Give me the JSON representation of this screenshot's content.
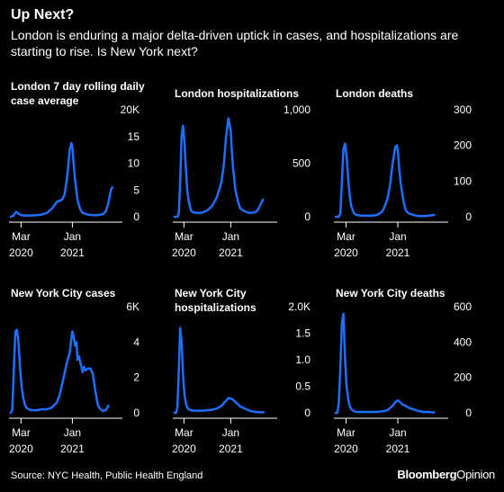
{
  "title": "Up Next?",
  "subtitle": "London is enduring a major delta-driven uptick in cases, and hospitalizations are starting to rise. Is New York next?",
  "source": "Source: NYC Health, Public Health England",
  "brand": {
    "part1": "Bloomberg",
    "part2": "Opinion"
  },
  "line_color": "#1f6fff",
  "chart_data": [
    {
      "type": "line",
      "title": "London 7 day rolling daily case average",
      "title_lines": [
        "London 7 day rolling daily",
        "case average"
      ],
      "yticks": [
        "20K",
        "15",
        "10",
        "5",
        "0"
      ],
      "ylim": [
        0,
        20000
      ],
      "xticks": [
        {
          "x": 2,
          "line1": "Mar",
          "line2": "2020"
        },
        {
          "x": 12,
          "line1": "Jan",
          "line2": "2021"
        }
      ],
      "xlim": [
        0,
        20
      ],
      "x": [
        0,
        0.5,
        1,
        1.5,
        2,
        3,
        4,
        5,
        6,
        7,
        8,
        9,
        9.5,
        10,
        10.5,
        11,
        11.5,
        11.8,
        12,
        12.2,
        12.5,
        13,
        13.5,
        14,
        15,
        16,
        17,
        18,
        18.5,
        19,
        19.3,
        19.6,
        19.8
      ],
      "y": [
        0,
        200,
        900,
        600,
        300,
        200,
        250,
        300,
        400,
        700,
        1500,
        2800,
        3000,
        3200,
        4200,
        7500,
        12500,
        13800,
        13000,
        10500,
        7000,
        3200,
        1500,
        700,
        400,
        300,
        300,
        500,
        1000,
        2500,
        4000,
        5200,
        5500
      ]
    },
    {
      "type": "line",
      "title": "London hospitalizations",
      "title_lines": [
        "London hospitalizations"
      ],
      "yticks": [
        "1,000",
        "500",
        "0"
      ],
      "ylim": [
        0,
        1000
      ],
      "xticks": [
        {
          "x": 2,
          "line1": "Mar",
          "line2": "2020"
        },
        {
          "x": 12,
          "line1": "Jan",
          "line2": "2021"
        }
      ],
      "xlim": [
        0,
        20
      ],
      "x": [
        0,
        0.3,
        0.6,
        0.9,
        1.2,
        1.5,
        1.8,
        2.1,
        2.4,
        2.7,
        3,
        3.5,
        4,
        5,
        6,
        7,
        8,
        9,
        9.5,
        10,
        10.5,
        11,
        11.5,
        11.8,
        12,
        12.2,
        12.5,
        13,
        13.5,
        14,
        15,
        16,
        17,
        17.5,
        18,
        18.5,
        18.9
      ],
      "y": [
        0,
        0,
        0,
        30,
        330,
        760,
        850,
        700,
        450,
        250,
        150,
        60,
        40,
        35,
        40,
        60,
        100,
        180,
        250,
        320,
        480,
        750,
        920,
        850,
        800,
        640,
        450,
        250,
        150,
        80,
        50,
        35,
        40,
        50,
        80,
        130,
        160
      ]
    },
    {
      "type": "line",
      "title": "London deaths",
      "title_lines": [
        "London deaths"
      ],
      "yticks": [
        "300",
        "200",
        "100",
        "0"
      ],
      "ylim": [
        0,
        300
      ],
      "xticks": [
        {
          "x": 2,
          "line1": "Mar",
          "line2": "2020"
        },
        {
          "x": 12,
          "line1": "Jan",
          "line2": "2021"
        }
      ],
      "xlim": [
        0,
        20
      ],
      "x": [
        0,
        0.3,
        0.6,
        0.9,
        1.2,
        1.5,
        1.8,
        2.1,
        2.4,
        2.7,
        3,
        3.5,
        4,
        5,
        6,
        7,
        8,
        9,
        9.5,
        10,
        10.5,
        11,
        11.5,
        11.8,
        12,
        12.2,
        12.5,
        13,
        13.5,
        14,
        15,
        16,
        17,
        18,
        19
      ],
      "y": [
        0,
        0,
        0,
        10,
        100,
        190,
        205,
        170,
        110,
        60,
        30,
        10,
        5,
        3,
        3,
        3,
        5,
        15,
        30,
        50,
        90,
        150,
        195,
        200,
        185,
        150,
        100,
        50,
        20,
        10,
        5,
        2,
        2,
        3,
        5
      ]
    },
    {
      "type": "line",
      "title": "New York City cases",
      "title_lines": [
        "New York City cases"
      ],
      "yticks": [
        "6K",
        "4",
        "2",
        "0"
      ],
      "ylim": [
        0,
        6000
      ],
      "xticks": [
        {
          "x": 2,
          "line1": "Mar",
          "line2": "2020"
        },
        {
          "x": 12,
          "line1": "Jan",
          "line2": "2021"
        }
      ],
      "xlim": [
        0,
        20
      ],
      "x": [
        0,
        0.3,
        0.6,
        0.9,
        1.2,
        1.5,
        1.8,
        2.1,
        2.4,
        2.7,
        3,
        3.5,
        4,
        5,
        6,
        7,
        8,
        9,
        9.5,
        10,
        10.3,
        10.6,
        10.9,
        11.2,
        11.5,
        11.8,
        12,
        12.2,
        12.5,
        12.8,
        13,
        13.3,
        13.6,
        14,
        14.3,
        14.6,
        15,
        15.5,
        16,
        16.5,
        17,
        17.5,
        18,
        18.5,
        19
      ],
      "y": [
        0,
        200,
        2500,
        4600,
        4700,
        4000,
        2500,
        1500,
        900,
        500,
        300,
        200,
        150,
        150,
        200,
        200,
        300,
        600,
        1000,
        1600,
        2000,
        2400,
        2800,
        3100,
        3400,
        4200,
        4600,
        4400,
        3800,
        4000,
        3000,
        3200,
        2800,
        2300,
        2600,
        2400,
        2500,
        2500,
        2200,
        1200,
        400,
        200,
        100,
        150,
        400
      ]
    },
    {
      "type": "line",
      "title": "New York City hospitalizations",
      "title_lines": [
        "New York City",
        "hospitalizations"
      ],
      "yticks": [
        "2.0K",
        "1.5",
        "1.0",
        "0.5",
        "0"
      ],
      "ylim": [
        0,
        2000
      ],
      "xticks": [
        {
          "x": 2,
          "line1": "Mar",
          "line2": "2020"
        },
        {
          "x": 12,
          "line1": "Jan",
          "line2": "2021"
        }
      ],
      "xlim": [
        0,
        20
      ],
      "x": [
        0,
        0.3,
        0.6,
        0.9,
        1.2,
        1.5,
        1.8,
        2.1,
        2.4,
        2.7,
        3,
        3.5,
        4,
        5,
        6,
        7,
        8,
        9,
        10,
        11,
        11.5,
        12,
        12.5,
        13,
        13.5,
        14,
        15,
        16,
        17,
        18,
        18.5,
        19
      ],
      "y": [
        0,
        0,
        100,
        800,
        1600,
        1350,
        700,
        350,
        180,
        100,
        70,
        50,
        40,
        40,
        40,
        50,
        60,
        80,
        130,
        230,
        280,
        270,
        250,
        200,
        170,
        120,
        80,
        40,
        20,
        10,
        10,
        10
      ]
    },
    {
      "type": "line",
      "title": "New York City deaths",
      "title_lines": [
        "New York City deaths"
      ],
      "yticks": [
        "600",
        "400",
        "200",
        "0"
      ],
      "ylim": [
        0,
        600
      ],
      "xticks": [
        {
          "x": 2,
          "line1": "Mar",
          "line2": "2020"
        },
        {
          "x": 12,
          "line1": "Jan",
          "line2": "2021"
        }
      ],
      "xlim": [
        0,
        20
      ],
      "x": [
        0,
        0.3,
        0.6,
        0.9,
        1.2,
        1.5,
        1.8,
        2.1,
        2.4,
        2.7,
        3,
        3.5,
        4,
        5,
        6,
        7,
        8,
        9,
        10,
        11,
        11.5,
        12,
        12.5,
        13,
        13.5,
        14,
        15,
        16,
        17,
        18,
        18.5,
        19
      ],
      "y": [
        0,
        0,
        50,
        260,
        510,
        560,
        300,
        150,
        80,
        40,
        20,
        10,
        5,
        5,
        5,
        5,
        5,
        8,
        15,
        40,
        60,
        70,
        60,
        45,
        40,
        30,
        20,
        10,
        5,
        5,
        3,
        2
      ]
    }
  ]
}
